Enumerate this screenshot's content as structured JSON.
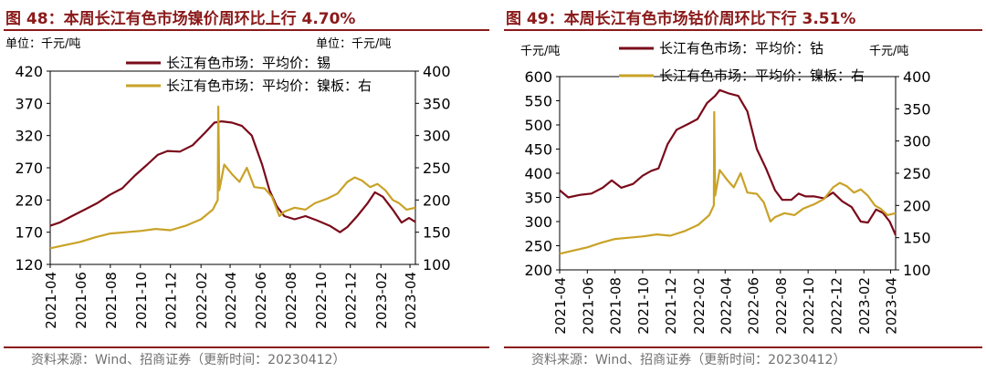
{
  "colors": {
    "primary": "#7a0a1a",
    "secondary": "#c9a227",
    "title": "#8b1a1a",
    "source": "#707070"
  },
  "chart_data": [
    {
      "type": "line",
      "title": "图 48：本周长江有色市场镍价周环比上行 4.70%",
      "left_unit": "单位：千元/吨",
      "right_unit": "单位：千元/吨",
      "left_ylim": [
        120,
        420
      ],
      "left_ticks": [
        120,
        170,
        220,
        270,
        320,
        370,
        420
      ],
      "right_ylim": [
        100,
        400
      ],
      "right_ticks": [
        100,
        150,
        200,
        250,
        300,
        350,
        400
      ],
      "x_range": [
        "2021-04-01",
        "2023-04-12"
      ],
      "x_ticks": [
        "2021-04",
        "2021-06",
        "2021-08",
        "2021-10",
        "2021-12",
        "2022-02",
        "2022-04",
        "2022-06",
        "2022-08",
        "2022-10",
        "2022-12",
        "2023-02",
        "2023-04"
      ],
      "series": [
        {
          "name": "长江有色市场：平均价：锡",
          "axis": "left",
          "color": "#7a0a1a",
          "points": [
            [
              "2021-04-01",
              180
            ],
            [
              "2021-04-20",
              185
            ],
            [
              "2021-05-15",
              195
            ],
            [
              "2021-06-10",
              205
            ],
            [
              "2021-07-05",
              215
            ],
            [
              "2021-07-31",
              228
            ],
            [
              "2021-08-25",
              238
            ],
            [
              "2021-09-20",
              258
            ],
            [
              "2021-10-15",
              275
            ],
            [
              "2021-11-05",
              290
            ],
            [
              "2021-11-25",
              296
            ],
            [
              "2021-12-20",
              295
            ],
            [
              "2022-01-15",
              305
            ],
            [
              "2022-02-10",
              325
            ],
            [
              "2022-02-28",
              340
            ],
            [
              "2022-03-15",
              342
            ],
            [
              "2022-04-05",
              340
            ],
            [
              "2022-04-25",
              335
            ],
            [
              "2022-05-15",
              320
            ],
            [
              "2022-06-05",
              275
            ],
            [
              "2022-06-20",
              235
            ],
            [
              "2022-07-05",
              210
            ],
            [
              "2022-07-20",
              195
            ],
            [
              "2022-08-10",
              190
            ],
            [
              "2022-09-01",
              195
            ],
            [
              "2022-09-25",
              188
            ],
            [
              "2022-10-20",
              180
            ],
            [
              "2022-11-10",
              170
            ],
            [
              "2022-11-25",
              178
            ],
            [
              "2022-12-15",
              195
            ],
            [
              "2023-01-05",
              215
            ],
            [
              "2023-01-20",
              232
            ],
            [
              "2023-02-05",
              225
            ],
            [
              "2023-02-25",
              205
            ],
            [
              "2023-03-15",
              185
            ],
            [
              "2023-03-30",
              192
            ],
            [
              "2023-04-12",
              186
            ]
          ]
        },
        {
          "name": "长江有色市场：平均价：镍板：右",
          "axis": "right",
          "color": "#c9a227",
          "points": [
            [
              "2021-04-01",
              125
            ],
            [
              "2021-05-01",
              130
            ],
            [
              "2021-06-01",
              135
            ],
            [
              "2021-07-01",
              142
            ],
            [
              "2021-08-01",
              148
            ],
            [
              "2021-09-01",
              150
            ],
            [
              "2021-10-01",
              152
            ],
            [
              "2021-11-01",
              155
            ],
            [
              "2021-12-01",
              153
            ],
            [
              "2022-01-01",
              160
            ],
            [
              "2022-02-01",
              170
            ],
            [
              "2022-02-25",
              185
            ],
            [
              "2022-03-07",
              200
            ],
            [
              "2022-03-08",
              345
            ],
            [
              "2022-03-10",
              215
            ],
            [
              "2022-03-20",
              255
            ],
            [
              "2022-04-05",
              240
            ],
            [
              "2022-04-20",
              228
            ],
            [
              "2022-05-05",
              250
            ],
            [
              "2022-05-20",
              220
            ],
            [
              "2022-06-10",
              218
            ],
            [
              "2022-06-25",
              205
            ],
            [
              "2022-07-10",
              175
            ],
            [
              "2022-07-20",
              182
            ],
            [
              "2022-08-10",
              188
            ],
            [
              "2022-09-01",
              185
            ],
            [
              "2022-09-20",
              195
            ],
            [
              "2022-10-15",
              202
            ],
            [
              "2022-11-05",
              210
            ],
            [
              "2022-11-25",
              228
            ],
            [
              "2022-12-10",
              235
            ],
            [
              "2022-12-25",
              230
            ],
            [
              "2023-01-10",
              220
            ],
            [
              "2023-01-25",
              225
            ],
            [
              "2023-02-10",
              215
            ],
            [
              "2023-02-25",
              200
            ],
            [
              "2023-03-10",
              195
            ],
            [
              "2023-03-25",
              185
            ],
            [
              "2023-04-12",
              188
            ]
          ]
        }
      ],
      "source": "资料来源：Wind、招商证券（更新时间：20230412）"
    },
    {
      "type": "line",
      "title": "图 49：本周长江有色市场钴价周环比下行 3.51%",
      "left_unit": "千元/吨",
      "right_unit": "千元/吨",
      "left_ylim": [
        200,
        600
      ],
      "left_ticks": [
        200,
        250,
        300,
        350,
        400,
        450,
        500,
        550,
        600
      ],
      "right_ylim": [
        100,
        400
      ],
      "right_ticks": [
        100,
        150,
        200,
        250,
        300,
        350,
        400
      ],
      "x_range": [
        "2021-04-01",
        "2023-04-12"
      ],
      "x_ticks": [
        "2021-04",
        "2021-06",
        "2021-08",
        "2021-10",
        "2021-12",
        "2022-02",
        "2022-04",
        "2022-06",
        "2022-08",
        "2022-10",
        "2022-12",
        "2023-02",
        "2023-04"
      ],
      "series": [
        {
          "name": "长江有色市场：平均价：钴",
          "axis": "left",
          "color": "#7a0a1a",
          "points": [
            [
              "2021-04-01",
              365
            ],
            [
              "2021-04-20",
              350
            ],
            [
              "2021-05-15",
              355
            ],
            [
              "2021-06-10",
              358
            ],
            [
              "2021-07-05",
              370
            ],
            [
              "2021-07-25",
              385
            ],
            [
              "2021-08-15",
              370
            ],
            [
              "2021-09-10",
              378
            ],
            [
              "2021-10-01",
              395
            ],
            [
              "2021-10-20",
              405
            ],
            [
              "2021-11-05",
              410
            ],
            [
              "2021-11-25",
              460
            ],
            [
              "2021-12-15",
              490
            ],
            [
              "2022-01-10",
              502
            ],
            [
              "2022-01-30",
              512
            ],
            [
              "2022-02-20",
              545
            ],
            [
              "2022-03-10",
              560
            ],
            [
              "2022-03-20",
              572
            ],
            [
              "2022-04-10",
              565
            ],
            [
              "2022-04-30",
              560
            ],
            [
              "2022-05-20",
              528
            ],
            [
              "2022-06-10",
              450
            ],
            [
              "2022-06-30",
              410
            ],
            [
              "2022-07-20",
              365
            ],
            [
              "2022-08-05",
              345
            ],
            [
              "2022-08-25",
              345
            ],
            [
              "2022-09-10",
              358
            ],
            [
              "2022-09-25",
              352
            ],
            [
              "2022-10-15",
              352
            ],
            [
              "2022-11-05",
              348
            ],
            [
              "2022-11-25",
              360
            ],
            [
              "2022-12-15",
              342
            ],
            [
              "2023-01-05",
              330
            ],
            [
              "2023-01-25",
              300
            ],
            [
              "2023-02-10",
              298
            ],
            [
              "2023-02-28",
              325
            ],
            [
              "2023-03-15",
              318
            ],
            [
              "2023-03-30",
              300
            ],
            [
              "2023-04-12",
              272
            ]
          ]
        },
        {
          "name": "长江有色市场：平均价：镍板：右",
          "axis": "right",
          "color": "#c9a227",
          "points": [
            [
              "2021-04-01",
              125
            ],
            [
              "2021-05-01",
              130
            ],
            [
              "2021-06-01",
              135
            ],
            [
              "2021-07-01",
              142
            ],
            [
              "2021-08-01",
              148
            ],
            [
              "2021-09-01",
              150
            ],
            [
              "2021-10-01",
              152
            ],
            [
              "2021-11-01",
              155
            ],
            [
              "2021-12-01",
              153
            ],
            [
              "2022-01-01",
              160
            ],
            [
              "2022-02-01",
              170
            ],
            [
              "2022-02-25",
              185
            ],
            [
              "2022-03-07",
              200
            ],
            [
              "2022-03-08",
              345
            ],
            [
              "2022-03-10",
              215
            ],
            [
              "2022-03-20",
              255
            ],
            [
              "2022-04-05",
              240
            ],
            [
              "2022-04-20",
              228
            ],
            [
              "2022-05-05",
              250
            ],
            [
              "2022-05-20",
              220
            ],
            [
              "2022-06-10",
              218
            ],
            [
              "2022-06-25",
              205
            ],
            [
              "2022-07-10",
              175
            ],
            [
              "2022-07-20",
              182
            ],
            [
              "2022-08-10",
              188
            ],
            [
              "2022-09-01",
              185
            ],
            [
              "2022-09-20",
              195
            ],
            [
              "2022-10-15",
              202
            ],
            [
              "2022-11-05",
              210
            ],
            [
              "2022-11-25",
              228
            ],
            [
              "2022-12-10",
              235
            ],
            [
              "2022-12-25",
              230
            ],
            [
              "2023-01-10",
              220
            ],
            [
              "2023-01-25",
              225
            ],
            [
              "2023-02-10",
              215
            ],
            [
              "2023-02-25",
              200
            ],
            [
              "2023-03-10",
              195
            ],
            [
              "2023-03-25",
              185
            ],
            [
              "2023-04-12",
              188
            ]
          ]
        }
      ],
      "source": "资料来源：Wind、招商证券（更新时间：20230412）"
    }
  ]
}
